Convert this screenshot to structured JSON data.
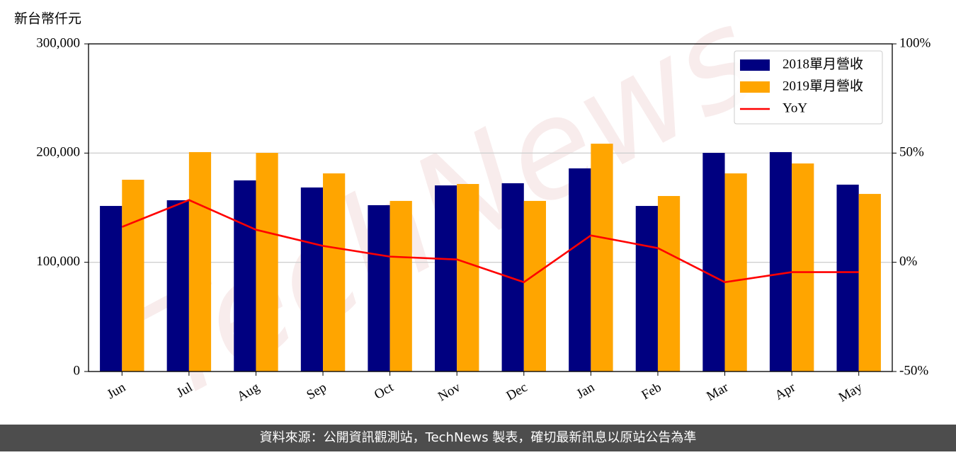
{
  "chart_data": {
    "type": "bar",
    "y_label": "新台幣仟元",
    "categories": [
      "Jun",
      "Jul",
      "Aug",
      "Sep",
      "Oct",
      "Nov",
      "Dec",
      "Jan",
      "Feb",
      "Mar",
      "Apr",
      "May"
    ],
    "series": [
      {
        "name": "2018單月營收",
        "type": "bar",
        "color": "#000080",
        "values": [
          151600,
          156800,
          175000,
          168500,
          152300,
          170400,
          172400,
          186000,
          151600,
          200200,
          200900,
          171100
        ]
      },
      {
        "name": "2019單月營收",
        "type": "bar",
        "color": "#ffa500",
        "values": [
          175600,
          200900,
          200200,
          181400,
          156200,
          171700,
          156200,
          208600,
          160700,
          181400,
          190500,
          162600
        ]
      },
      {
        "name": "YoY",
        "type": "line",
        "axis": "y2",
        "color": "#ff0000",
        "values": [
          16.2,
          28.5,
          14.9,
          7.5,
          2.6,
          1.3,
          -9.1,
          12.3,
          6.5,
          -9.1,
          -4.5,
          -4.5
        ]
      }
    ],
    "ylim": [
      0,
      300000
    ],
    "yticks": [
      0,
      {
        "value": 100000,
        "label": "100,000"
      },
      {
        "value": 200000,
        "label": "200,000"
      },
      {
        "value": 300000,
        "label": "300,000"
      }
    ],
    "y2lim": [
      -50,
      100
    ],
    "y2ticks": [
      {
        "value": -50,
        "label": "-50%"
      },
      {
        "value": 0,
        "label": "0%"
      },
      {
        "value": 50,
        "label": "50%"
      },
      {
        "value": 100,
        "label": "100%"
      }
    ],
    "grid": true,
    "legend": "upper right"
  },
  "watermark": "TechNews",
  "footer": "資料來源：公開資訊觀測站，TechNews 製表，確切最新訊息以原站公告為準"
}
